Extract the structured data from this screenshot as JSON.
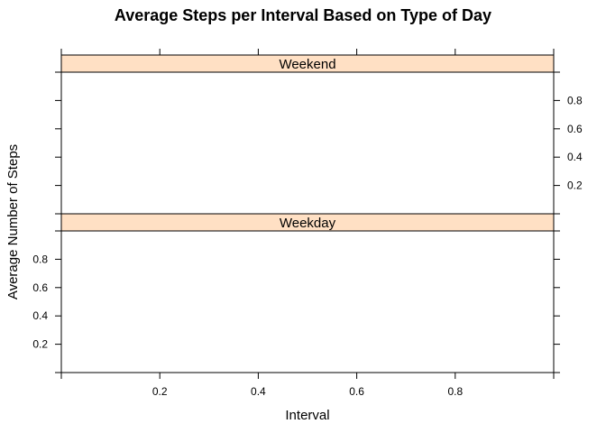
{
  "chart_data": {
    "type": "line",
    "title": "Average Steps per Interval Based on Type of Day",
    "xlabel": "Interval",
    "ylabel": "Average Number of Steps",
    "xlim": [
      0,
      1
    ],
    "ylim": [
      0,
      1
    ],
    "x_ticks": [
      0.2,
      0.4,
      0.6,
      0.8
    ],
    "y_ticks": [
      0.2,
      0.4,
      0.6,
      0.8
    ],
    "tick_labels": [
      "0.2",
      "0.4",
      "0.6",
      "0.8"
    ],
    "panels": [
      {
        "strip_label": "Weekend",
        "y_tick_side": "right",
        "series": []
      },
      {
        "strip_label": "Weekday",
        "y_tick_side": "left",
        "series": []
      }
    ],
    "strip_color": "#ffe0c4",
    "grid": false,
    "legend": "none"
  }
}
